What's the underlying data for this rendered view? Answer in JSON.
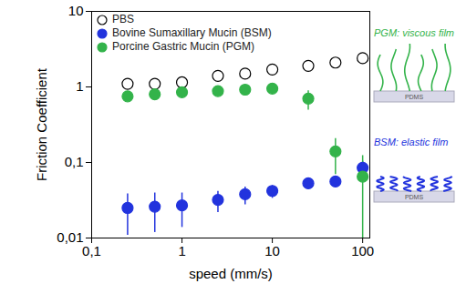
{
  "chart_data": {
    "type": "scatter",
    "xlabel": "speed (mm/s)",
    "ylabel": "Friction Coefficient",
    "log": true,
    "grid": false,
    "legend": "top-left",
    "xlim": [
      0.1,
      120
    ],
    "ylim": [
      0.01,
      10
    ],
    "xticks": [
      {
        "value": 0.1,
        "label": "0,1"
      },
      1,
      10,
      100
    ],
    "yticks": [
      {
        "value": 0.01,
        "label": "0,01"
      },
      {
        "value": 0.1,
        "label": "0,1"
      },
      1,
      10
    ],
    "x": [
      0.25,
      0.5,
      1,
      2.5,
      5,
      10,
      25,
      50,
      100
    ],
    "series": [
      {
        "name": "PBS",
        "color": "#000000",
        "marker": "open-circle",
        "values": [
          1.1,
          1.1,
          1.15,
          1.4,
          1.5,
          1.7,
          1.9,
          2.1,
          2.4
        ]
      },
      {
        "name": "Bovine Sumaxillary Mucin (BSM)",
        "color": "#2233dd",
        "marker": "circle",
        "values": [
          0.025,
          0.026,
          0.027,
          0.032,
          0.038,
          0.042,
          0.053,
          0.056,
          0.085
        ],
        "error": [
          0.014,
          0.014,
          0.013,
          0.01,
          0.01,
          0.008,
          0.006,
          0.006,
          0.02
        ]
      },
      {
        "name": "Porcine Gastric Mucin (PGM)",
        "color": "#33b34a",
        "marker": "circle",
        "values": [
          0.75,
          0.8,
          0.85,
          0.88,
          0.92,
          0.95,
          0.7,
          0.14,
          0.065
        ],
        "error": [
          0.05,
          0.05,
          0.05,
          0.05,
          0.05,
          0.05,
          0.2,
          0.07,
          0.06
        ]
      }
    ],
    "annotations": [
      {
        "text": "PGM: viscous film",
        "color": "#33b34a"
      },
      {
        "text": "PDMS",
        "color": "#555555"
      },
      {
        "text": "BSM: elastic film",
        "color": "#2233dd"
      },
      {
        "text": "PDMS",
        "color": "#555555"
      }
    ]
  }
}
